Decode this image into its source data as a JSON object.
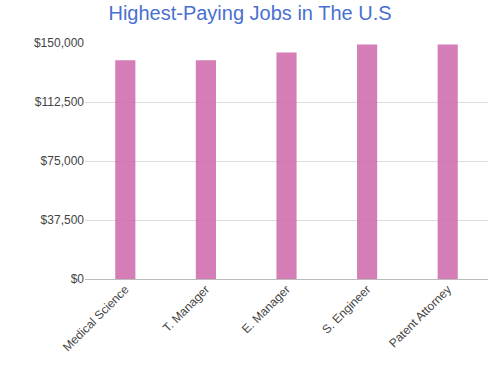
{
  "chart_data": {
    "type": "bar",
    "title": "Highest-Paying Jobs in The U.S",
    "categories": [
      "Medical Science",
      "T. Manager",
      "E. Manager",
      "S. Engineer",
      "Patent Attorney"
    ],
    "values": [
      139000,
      139000,
      144000,
      149000,
      149000
    ],
    "color": "#cc66aa",
    "ylim": [
      0,
      150000
    ],
    "yticks": [
      {
        "value": 0,
        "label": "$0"
      },
      {
        "value": 37500,
        "label": "$37,500"
      },
      {
        "value": 75000,
        "label": "$75,000"
      },
      {
        "value": 112500,
        "label": "$112,500"
      },
      {
        "value": 150000,
        "label": "$150,000"
      }
    ],
    "grid": true
  }
}
